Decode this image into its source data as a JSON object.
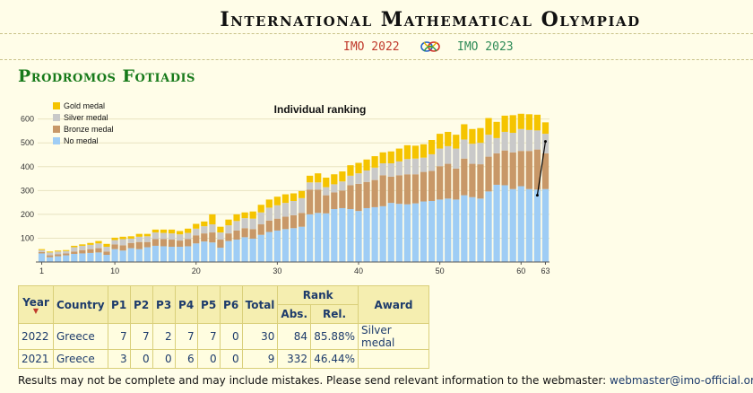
{
  "header": {
    "site_title": "International Mathematical Olympiad"
  },
  "nav": {
    "prev": "IMO 2022",
    "next": "IMO 2023"
  },
  "person": {
    "name": "Prodromos Fotiadis"
  },
  "colors": {
    "gold": "#f5c400",
    "silver": "#c9c9c9",
    "bronze": "#c89868",
    "none": "#9fcdf5",
    "accent_green": "#177a1a"
  },
  "chart_data": {
    "type": "bar",
    "title": "Individual ranking",
    "stacked": true,
    "ylim": [
      0,
      640
    ],
    "yticks": [
      100,
      200,
      300,
      400,
      500,
      600
    ],
    "xticks": [
      1,
      10,
      20,
      30,
      40,
      50,
      60,
      63
    ],
    "legend_position": "top-left",
    "x": [
      1,
      2,
      3,
      4,
      5,
      6,
      7,
      8,
      9,
      10,
      11,
      12,
      13,
      14,
      15,
      16,
      17,
      18,
      19,
      20,
      21,
      22,
      23,
      24,
      25,
      26,
      27,
      28,
      29,
      30,
      31,
      32,
      33,
      34,
      35,
      36,
      37,
      38,
      39,
      40,
      41,
      42,
      43,
      44,
      45,
      46,
      47,
      48,
      49,
      50,
      51,
      52,
      53,
      54,
      55,
      56,
      57,
      58,
      59,
      60,
      61,
      62,
      63
    ],
    "series": [
      {
        "name": "No medal",
        "color": "#9fcdf5",
        "values": [
          36,
          20,
          24,
          28,
          34,
          36,
          38,
          40,
          30,
          54,
          48,
          58,
          54,
          62,
          68,
          66,
          64,
          64,
          66,
          78,
          86,
          82,
          60,
          88,
          94,
          104,
          98,
          114,
          126,
          132,
          138,
          142,
          148,
          200,
          206,
          204,
          222,
          226,
          222,
          214,
          226,
          230,
          234,
          248,
          244,
          242,
          246,
          254,
          256,
          262,
          266,
          262,
          280,
          272,
          266,
          296,
          324,
          322,
          306,
          318,
          306,
          304,
          306
        ]
      },
      {
        "name": "Bronze medal",
        "color": "#c89868",
        "values": [
          6,
          8,
          8,
          8,
          10,
          14,
          16,
          18,
          14,
          20,
          22,
          22,
          30,
          22,
          28,
          30,
          30,
          26,
          30,
          34,
          34,
          42,
          34,
          32,
          38,
          38,
          40,
          44,
          48,
          50,
          52,
          54,
          58,
          104,
          98,
          76,
          70,
          74,
          100,
          114,
          110,
          114,
          130,
          110,
          120,
          126,
          122,
          124,
          126,
          140,
          146,
          130,
          154,
          140,
          144,
          146,
          132,
          146,
          154,
          148,
          160,
          168,
          150
        ]
      },
      {
        "name": "Silver medal",
        "color": "#c9c9c9",
        "values": [
          8,
          12,
          12,
          10,
          18,
          18,
          18,
          20,
          20,
          18,
          26,
          18,
          22,
          24,
          28,
          26,
          26,
          26,
          26,
          28,
          30,
          34,
          30,
          34,
          40,
          42,
          44,
          50,
          54,
          56,
          58,
          60,
          62,
          30,
          30,
          34,
          34,
          38,
          40,
          44,
          48,
          52,
          50,
          56,
          58,
          64,
          66,
          60,
          70,
          74,
          74,
          84,
          80,
          84,
          90,
          92,
          64,
          78,
          82,
          92,
          88,
          80,
          82
        ]
      },
      {
        "name": "Gold medal",
        "color": "#f5c400",
        "values": [
          4,
          4,
          4,
          4,
          6,
          6,
          8,
          10,
          12,
          10,
          10,
          10,
          12,
          10,
          12,
          14,
          16,
          14,
          18,
          20,
          20,
          42,
          24,
          24,
          28,
          24,
          30,
          32,
          34,
          36,
          36,
          32,
          30,
          28,
          38,
          40,
          42,
          42,
          44,
          44,
          46,
          48,
          46,
          50,
          54,
          58,
          54,
          56,
          60,
          62,
          60,
          58,
          64,
          62,
          62,
          70,
          68,
          68,
          74,
          64,
          66,
          66,
          48
        ]
      }
    ],
    "highlight_line": {
      "x1": 62,
      "y1": 280,
      "x2": 63,
      "y2": 506
    }
  },
  "table": {
    "headers": {
      "year": "Year",
      "country": "Country",
      "p1": "P1",
      "p2": "P2",
      "p3": "P3",
      "p4": "P4",
      "p5": "P5",
      "p6": "P6",
      "total": "Total",
      "rank": "Rank",
      "abs": "Abs.",
      "rel": "Rel.",
      "award": "Award"
    },
    "sort_indicator": "▼",
    "rows": [
      {
        "year": "2022",
        "country": "Greece",
        "p1": "7",
        "p2": "7",
        "p3": "2",
        "p4": "7",
        "p5": "7",
        "p6": "0",
        "total": "30",
        "abs": "84",
        "rel": "85.88%",
        "award": "Silver medal"
      },
      {
        "year": "2021",
        "country": "Greece",
        "p1": "3",
        "p2": "0",
        "p3": "0",
        "p4": "6",
        "p5": "0",
        "p6": "0",
        "total": "9",
        "abs": "332",
        "rel": "46.44%",
        "award": ""
      }
    ]
  },
  "footer": {
    "text": "Results may not be complete and may include mistakes. Please send relevant information to the webmaster:",
    "email": "webmaster@imo-official.org"
  }
}
